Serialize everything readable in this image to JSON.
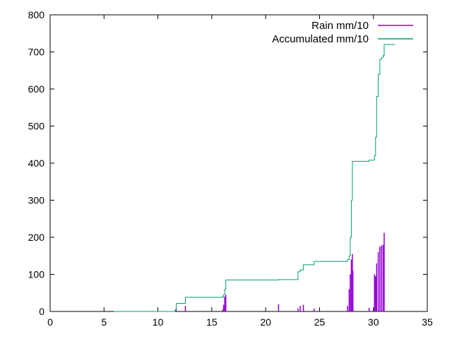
{
  "chart_data": {
    "type": "line",
    "xlim": [
      0,
      35
    ],
    "ylim": [
      0,
      800
    ],
    "x_ticks": [
      0,
      5,
      10,
      15,
      20,
      25,
      30,
      35
    ],
    "y_ticks": [
      0,
      100,
      200,
      300,
      400,
      500,
      600,
      700,
      800
    ],
    "grid": false,
    "legend_position": "top-right",
    "series": [
      {
        "name": "Rain mm/10",
        "style": "impulses",
        "color": "#9400d3",
        "x": [
          11.6,
          11.7,
          12.55,
          16.0,
          16.1,
          16.2,
          16.3,
          21.2,
          23.0,
          23.2,
          23.5,
          24.5,
          27.6,
          27.75,
          27.85,
          27.95,
          28.05,
          28.1,
          29.6,
          30.1,
          30.2,
          30.3,
          30.45,
          30.6,
          30.75,
          30.9,
          31.0
        ],
        "y": [
          4,
          8,
          15,
          5,
          18,
          40,
          45,
          20,
          8,
          15,
          18,
          8,
          15,
          60,
          100,
          140,
          155,
          110,
          10,
          100,
          95,
          130,
          160,
          175,
          178,
          180,
          212
        ]
      },
      {
        "name": "Accumulated mm/10",
        "style": "steps",
        "color": "#009e73",
        "x": [
          5.9,
          11.6,
          11.7,
          12.55,
          16.0,
          16.1,
          16.2,
          16.3,
          21.2,
          23.0,
          23.2,
          23.5,
          24.5,
          27.6,
          27.75,
          27.85,
          27.95,
          28.05,
          28.1,
          29.6,
          30.1,
          30.2,
          30.3,
          30.45,
          30.6,
          30.75,
          30.9,
          31.0,
          32.0
        ],
        "y": [
          0,
          4,
          22,
          38,
          40,
          45,
          60,
          85,
          86,
          107,
          112,
          126,
          135,
          140,
          150,
          200,
          300,
          405,
          405,
          408,
          420,
          470,
          580,
          640,
          680,
          685,
          690,
          720,
          720
        ]
      }
    ]
  }
}
